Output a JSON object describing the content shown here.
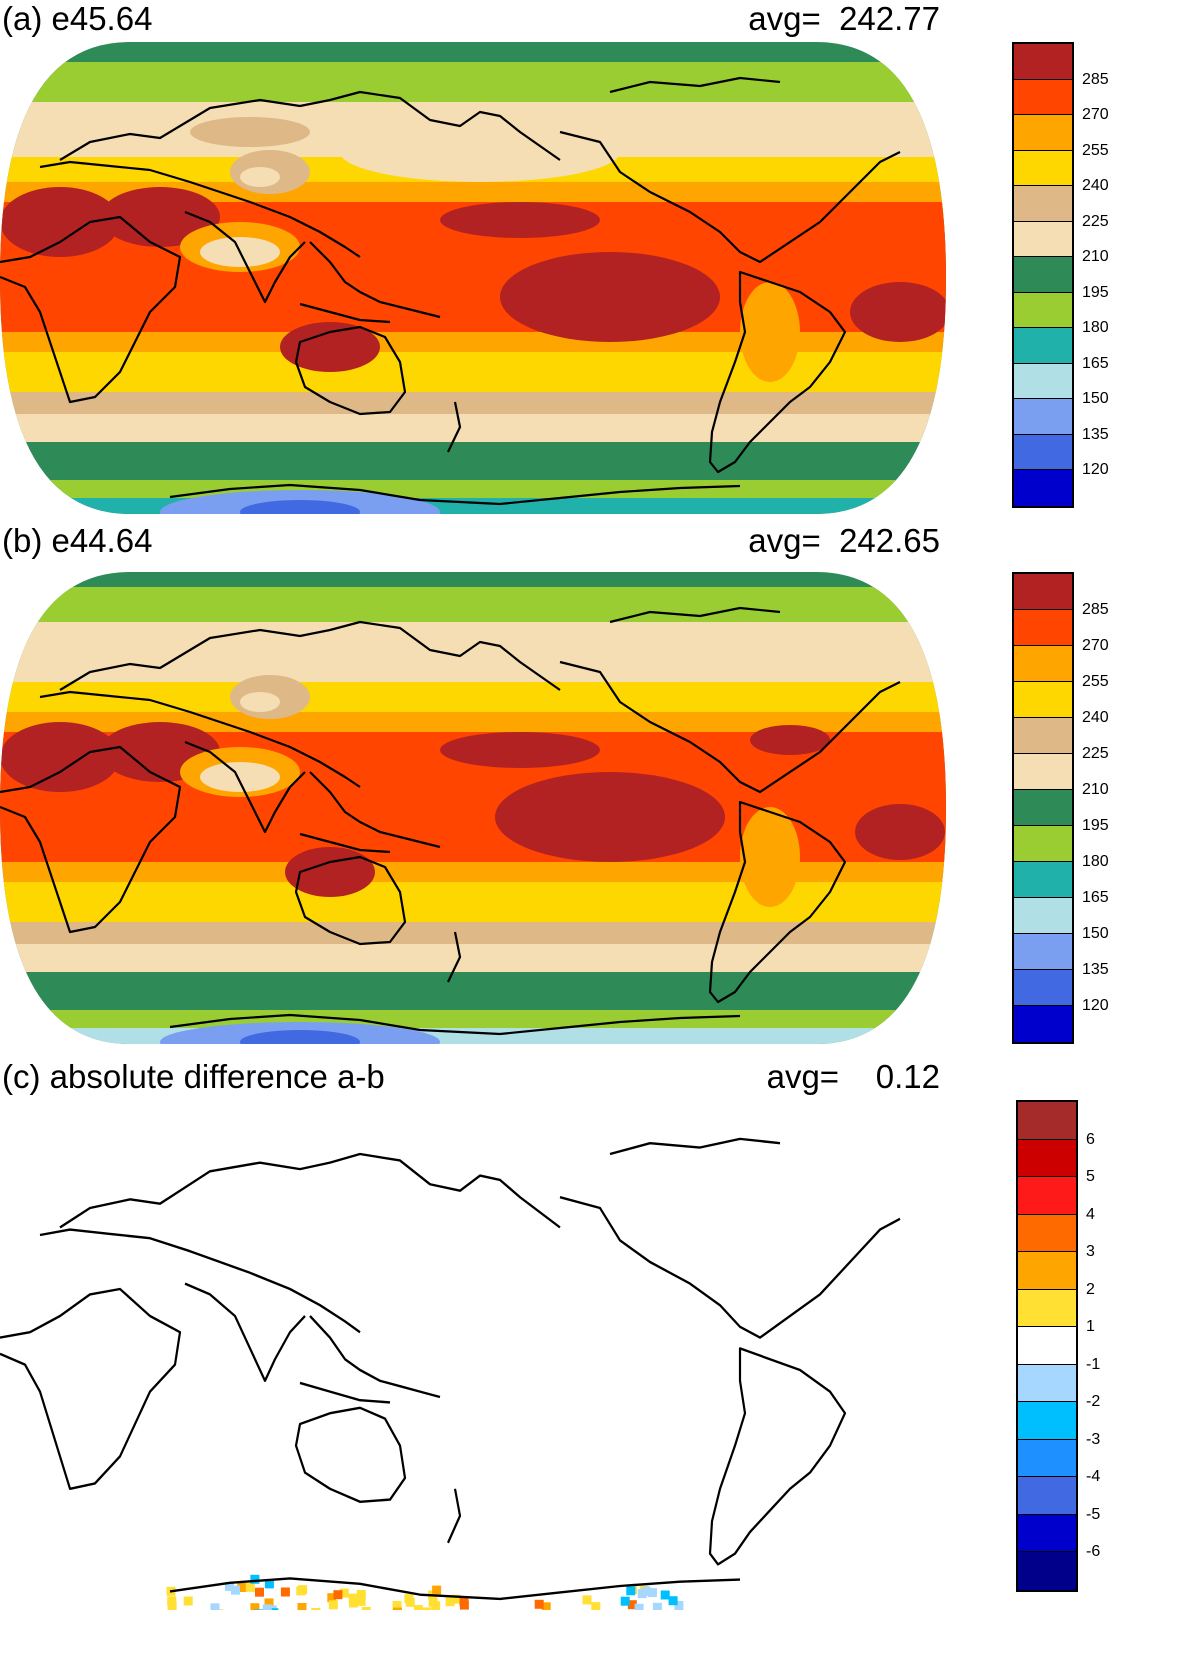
{
  "panels": [
    {
      "id": "a",
      "title": "(a) e45.64",
      "avg_label": "avg=",
      "avg_value": "242.77",
      "colorbar": {
        "labels": [
          "285",
          "270",
          "255",
          "240",
          "225",
          "210",
          "195",
          "180",
          "165",
          "150",
          "135",
          "120"
        ],
        "colors": [
          "#b22222",
          "#ff4500",
          "#ffa500",
          "#ffd700",
          "#deb887",
          "#f5deb3",
          "#2e8b57",
          "#9acd32",
          "#20b2aa",
          "#b0e0e6",
          "#7b9ff0",
          "#4169e1",
          "#0000cd"
        ]
      }
    },
    {
      "id": "b",
      "title": "(b) e44.64",
      "avg_label": "avg=",
      "avg_value": "242.65",
      "colorbar": {
        "labels": [
          "285",
          "270",
          "255",
          "240",
          "225",
          "210",
          "195",
          "180",
          "165",
          "150",
          "135",
          "120"
        ],
        "colors": [
          "#b22222",
          "#ff4500",
          "#ffa500",
          "#ffd700",
          "#deb887",
          "#f5deb3",
          "#2e8b57",
          "#9acd32",
          "#20b2aa",
          "#b0e0e6",
          "#7b9ff0",
          "#4169e1",
          "#0000cd"
        ]
      }
    },
    {
      "id": "c",
      "title": "(c) absolute difference a-b",
      "avg_label": "avg=",
      "avg_value": "0.12",
      "colorbar": {
        "labels": [
          "6",
          "5",
          "4",
          "3",
          "2",
          "1",
          "-1",
          "-2",
          "-3",
          "-4",
          "-5",
          "-6"
        ],
        "colors": [
          "#a52a2a",
          "#cd0000",
          "#ff1a1a",
          "#ff6a00",
          "#ffa500",
          "#ffe033",
          "#ffffff",
          "#a6d8ff",
          "#00bfff",
          "#1e90ff",
          "#4169e1",
          "#0000cd",
          "#00008b"
        ]
      }
    }
  ]
}
